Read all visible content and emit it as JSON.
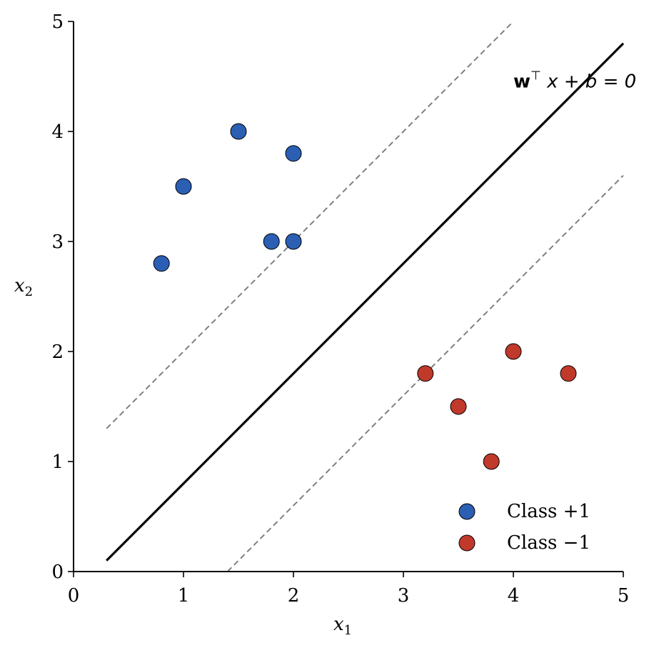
{
  "chart_data": {
    "type": "scatter",
    "xlim": [
      0,
      5
    ],
    "ylim": [
      0,
      5
    ],
    "x_ticks": [
      "0",
      "1",
      "2",
      "3",
      "4",
      "5"
    ],
    "y_ticks": [
      "0",
      "1",
      "2",
      "3",
      "4",
      "5"
    ],
    "xlabel_main": "x",
    "xlabel_sub": "1",
    "ylabel_main": "x",
    "ylabel_sub": "2",
    "grid": false,
    "legend_position": "lower-right",
    "series": [
      {
        "name": "Class +1",
        "color": "#2b5fb4",
        "points": [
          [
            1.5,
            4.0
          ],
          [
            2.0,
            3.8
          ],
          [
            1.0,
            3.5
          ],
          [
            1.8,
            3.0
          ],
          [
            2.0,
            3.0
          ],
          [
            0.8,
            2.8
          ]
        ]
      },
      {
        "name": "Class −1",
        "color": "#c0392b",
        "points": [
          [
            4.0,
            2.0
          ],
          [
            3.2,
            1.8
          ],
          [
            4.5,
            1.8
          ],
          [
            3.5,
            1.5
          ],
          [
            3.8,
            1.0
          ]
        ]
      }
    ],
    "lines": [
      {
        "role": "decision-boundary",
        "style": "solid",
        "color": "#000000",
        "from": [
          0.3,
          0.1
        ],
        "to": [
          5.0,
          4.8
        ]
      },
      {
        "role": "upper-margin",
        "style": "dashed",
        "color": "#808080",
        "from": [
          0.3,
          1.3
        ],
        "to": [
          4.0,
          5.0
        ]
      },
      {
        "role": "lower-margin",
        "style": "dashed",
        "color": "#808080",
        "from": [
          1.4,
          0.0
        ],
        "to": [
          5.0,
          3.6
        ]
      }
    ],
    "annotation": {
      "bold": "w",
      "sup": "⊤",
      "rest": " x + b = 0",
      "anchor": [
        4.0,
        4.4
      ]
    }
  }
}
